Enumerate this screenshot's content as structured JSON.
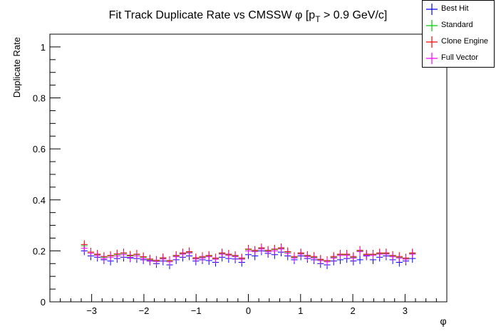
{
  "chart_data": {
    "type": "scatter",
    "title": "Fit Track Duplicate Rate vs CMSSW φ [p",
    "title_sub": "T",
    "title_tail": " > 0.9 GeV/c]",
    "xlabel": "φ",
    "ylabel": "Duplicate Rate",
    "xlim": [
      -3.8,
      3.8
    ],
    "ylim": [
      0,
      1.05
    ],
    "x_ticks": [
      -3,
      -2,
      -1,
      0,
      1,
      2,
      3
    ],
    "x_tick_labels": [
      "−3",
      "−2",
      "−1",
      "0",
      "1",
      "2",
      "3"
    ],
    "y_ticks": [
      0,
      0.2,
      0.4,
      0.6,
      0.8,
      1
    ],
    "y_tick_labels": [
      "0",
      "0.2",
      "0.4",
      "0.6",
      "0.8",
      "1"
    ],
    "legend_position": "top-right",
    "x": [
      -3.1416,
      -3.0159,
      -2.8903,
      -2.7646,
      -2.6389,
      -2.5133,
      -2.3876,
      -2.2619,
      -2.1363,
      -2.0106,
      -1.885,
      -1.7593,
      -1.6336,
      -1.508,
      -1.3823,
      -1.2566,
      -1.131,
      -1.0053,
      -0.8796,
      -0.754,
      -0.6283,
      -0.5027,
      -0.377,
      -0.2513,
      -0.1257,
      0.0,
      0.1257,
      0.2513,
      0.377,
      0.5027,
      0.6283,
      0.754,
      0.8796,
      1.0053,
      1.131,
      1.2566,
      1.3823,
      1.508,
      1.6336,
      1.7593,
      1.885,
      2.0106,
      2.1363,
      2.2619,
      2.3876,
      2.5133,
      2.6389,
      2.7646,
      2.8903,
      3.0159,
      3.1416
    ],
    "series": [
      {
        "name": "Best Hit",
        "color": "#0000ff",
        "values": [
          0.2,
          0.18,
          0.175,
          0.165,
          0.16,
          0.17,
          0.175,
          0.172,
          0.17,
          0.165,
          0.16,
          0.15,
          0.16,
          0.145,
          0.165,
          0.175,
          0.18,
          0.16,
          0.165,
          0.162,
          0.155,
          0.175,
          0.17,
          0.168,
          0.155,
          0.185,
          0.18,
          0.2,
          0.19,
          0.185,
          0.195,
          0.18,
          0.165,
          0.18,
          0.17,
          0.165,
          0.15,
          0.145,
          0.16,
          0.165,
          0.17,
          0.16,
          0.165,
          0.18,
          0.165,
          0.175,
          0.18,
          0.165,
          0.155,
          0.16,
          0.17
        ]
      },
      {
        "name": "Standard",
        "color": "#00cc00",
        "values": [
          0.22,
          0.195,
          0.185,
          0.175,
          0.18,
          0.185,
          0.19,
          0.18,
          0.185,
          0.175,
          0.165,
          0.16,
          0.17,
          0.16,
          0.18,
          0.19,
          0.195,
          0.17,
          0.175,
          0.18,
          0.17,
          0.19,
          0.185,
          0.18,
          0.17,
          0.205,
          0.2,
          0.21,
          0.2,
          0.205,
          0.21,
          0.195,
          0.175,
          0.19,
          0.18,
          0.175,
          0.165,
          0.16,
          0.175,
          0.185,
          0.185,
          0.175,
          0.2,
          0.185,
          0.185,
          0.19,
          0.19,
          0.18,
          0.175,
          0.17,
          0.19
        ]
      },
      {
        "name": "Clone Engine",
        "color": "#ff0000",
        "values": [
          0.225,
          0.195,
          0.187,
          0.178,
          0.182,
          0.188,
          0.192,
          0.183,
          0.187,
          0.177,
          0.168,
          0.163,
          0.173,
          0.162,
          0.182,
          0.192,
          0.197,
          0.173,
          0.178,
          0.182,
          0.172,
          0.192,
          0.187,
          0.182,
          0.172,
          0.207,
          0.202,
          0.212,
          0.202,
          0.207,
          0.212,
          0.197,
          0.178,
          0.192,
          0.182,
          0.178,
          0.167,
          0.162,
          0.178,
          0.187,
          0.187,
          0.178,
          0.202,
          0.187,
          0.187,
          0.192,
          0.192,
          0.182,
          0.178,
          0.172,
          0.192
        ]
      },
      {
        "name": "Full Vector",
        "color": "#ff00ff",
        "values": [
          0.21,
          0.19,
          0.182,
          0.17,
          0.175,
          0.18,
          0.185,
          0.175,
          0.18,
          0.17,
          0.162,
          0.158,
          0.168,
          0.157,
          0.177,
          0.187,
          0.192,
          0.168,
          0.172,
          0.177,
          0.167,
          0.187,
          0.182,
          0.177,
          0.167,
          0.2,
          0.197,
          0.207,
          0.197,
          0.2,
          0.207,
          0.19,
          0.172,
          0.187,
          0.177,
          0.172,
          0.162,
          0.157,
          0.172,
          0.182,
          0.182,
          0.172,
          0.197,
          0.182,
          0.182,
          0.187,
          0.187,
          0.177,
          0.172,
          0.167,
          0.187
        ]
      }
    ]
  }
}
